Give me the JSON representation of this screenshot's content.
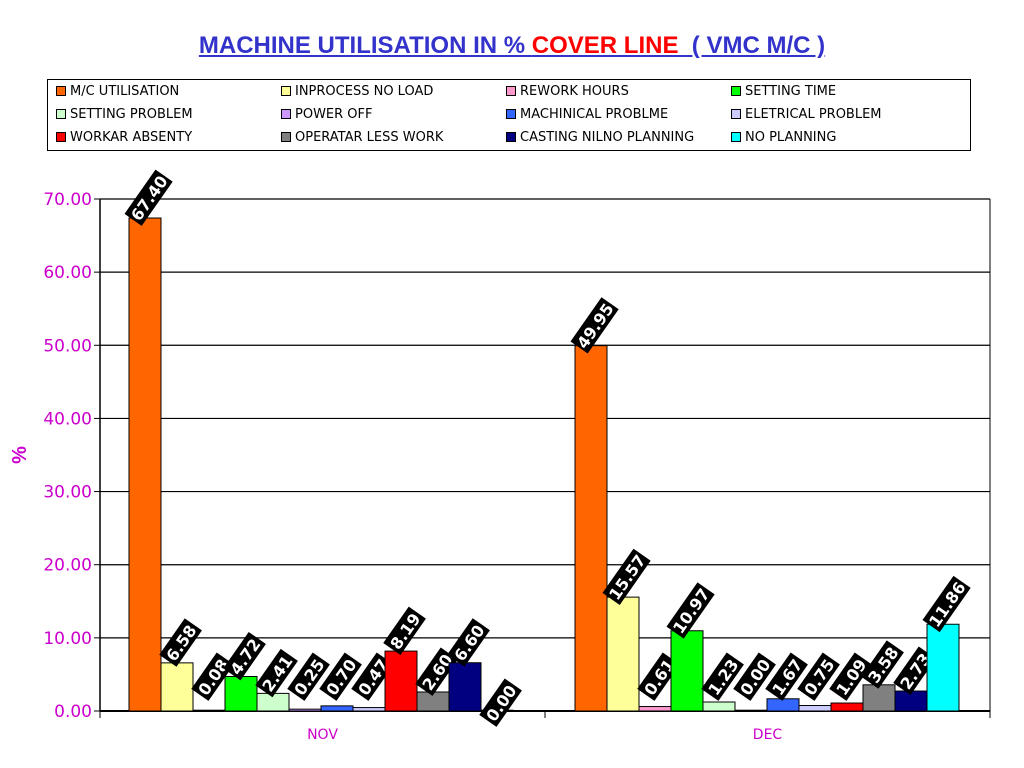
{
  "title": {
    "part1": "MACHINE UTILISATION IN % ",
    "part2": "COVER LINE ",
    "part3": " ( VMC M/C )"
  },
  "colors": {
    "title": "#3333cc",
    "title_highlight": "#ff0000",
    "axis_text": "#cc00cc",
    "category_text": "#cc00cc"
  },
  "chart_data": {
    "type": "bar",
    "ylabel": "%",
    "ylim": [
      0,
      70
    ],
    "yticks": [
      "0.00",
      "10.00",
      "20.00",
      "30.00",
      "40.00",
      "50.00",
      "60.00",
      "70.00"
    ],
    "grid": true,
    "legend_position": "top",
    "categories": [
      "NOV",
      "DEC"
    ],
    "series": [
      {
        "name": "M/C UTILISATION",
        "color": "#ff6600",
        "values": [
          67.4,
          49.95
        ],
        "labels": [
          "67.40",
          "49.95"
        ]
      },
      {
        "name": "INPROCESS NO LOAD",
        "color": "#ffff99",
        "values": [
          6.58,
          15.57
        ],
        "labels": [
          "6.58",
          "15.57"
        ]
      },
      {
        "name": "REWORK HOURS",
        "color": "#ff99cc",
        "values": [
          0.08,
          0.61
        ],
        "labels": [
          "0.08",
          "0.61"
        ]
      },
      {
        "name": "SETTING TIME",
        "color": "#00ff00",
        "values": [
          4.72,
          10.97
        ],
        "labels": [
          "4.72",
          "10.97"
        ]
      },
      {
        "name": "SETTING PROBLEM",
        "color": "#ccffcc",
        "values": [
          2.41,
          1.23
        ],
        "labels": [
          "2.41",
          "1.23"
        ]
      },
      {
        "name": "POWER OFF",
        "color": "#cc99ff",
        "values": [
          0.25,
          0.0
        ],
        "labels": [
          "0.25",
          "0.00"
        ]
      },
      {
        "name": "MACHINICAL PROBLME",
        "color": "#3366ff",
        "values": [
          0.7,
          1.67
        ],
        "labels": [
          "0.70",
          "1.67"
        ]
      },
      {
        "name": "ELETRICAL PROBLEM",
        "color": "#ccccff",
        "values": [
          0.47,
          0.75
        ],
        "labels": [
          "0.47",
          "0.75"
        ]
      },
      {
        "name": "WORKAR ABSENTY",
        "color": "#ff0000",
        "values": [
          8.19,
          1.09
        ],
        "labels": [
          "8.19",
          "1.09"
        ]
      },
      {
        "name": "OPERATAR LESS WORK",
        "color": "#808080",
        "values": [
          2.6,
          3.58
        ],
        "labels": [
          "2.60",
          "3.58"
        ]
      },
      {
        "name": "CASTING NILNO PLANNING",
        "color": "#000080",
        "values": [
          6.6,
          2.73
        ],
        "labels": [
          "6.60",
          "2.73"
        ]
      },
      {
        "name": "NO PLANNING",
        "color": "#00ffff",
        "values": [
          0.0,
          11.86
        ],
        "labels": [
          "0.00",
          "11.86"
        ]
      }
    ]
  }
}
